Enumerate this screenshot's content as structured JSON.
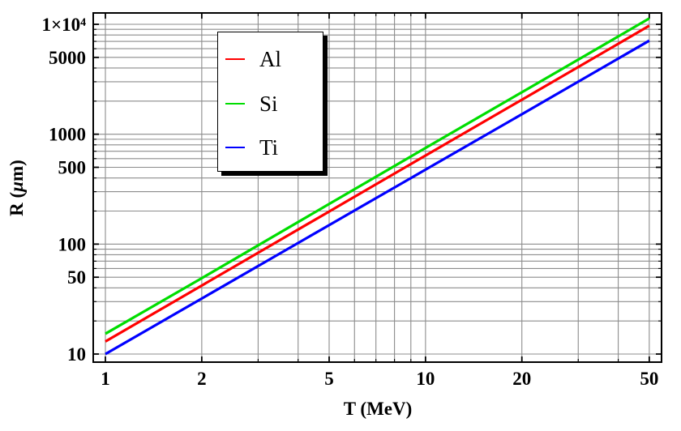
{
  "chart_data": {
    "type": "line",
    "title": "",
    "x_axis": {
      "label": "T (MeV)",
      "scale": "log",
      "range": [
        1,
        50
      ],
      "major_ticks": [
        1,
        2,
        5,
        10,
        20,
        50
      ],
      "major_tick_labels": [
        "1",
        "2",
        "5",
        "10",
        "20",
        "50"
      ]
    },
    "y_axis": {
      "label": "R (μm)",
      "scale": "log",
      "range": [
        10,
        10000
      ],
      "major_ticks": [
        10,
        50,
        100,
        500,
        1000,
        5000,
        10000
      ],
      "major_tick_labels": [
        "10",
        "50",
        "100",
        "500",
        "1000",
        "5000",
        "1×10⁴"
      ]
    },
    "grid": {
      "visible": true,
      "color": "#8c8c8c",
      "x_lines": [
        1,
        2,
        3,
        4,
        5,
        6,
        7,
        8,
        9,
        10,
        20,
        30,
        40,
        50
      ],
      "y_lines": [
        10,
        20,
        30,
        40,
        50,
        60,
        70,
        80,
        90,
        100,
        200,
        300,
        400,
        500,
        600,
        700,
        800,
        900,
        1000,
        2000,
        3000,
        4000,
        5000,
        6000,
        7000,
        8000,
        9000,
        10000
      ]
    },
    "x_sample": [
      1,
      2,
      5,
      10,
      20,
      50
    ],
    "series": [
      {
        "name": "Al",
        "color": "#ff0000",
        "values": [
          13,
          42,
          198,
          640,
          2060,
          9700
        ]
      },
      {
        "name": "Si",
        "color": "#00dd00",
        "values": [
          15.3,
          49,
          232,
          750,
          2410,
          11300
        ]
      },
      {
        "name": "Ti",
        "color": "#0000ff",
        "values": [
          10,
          32,
          149,
          476,
          1520,
          7100
        ]
      }
    ],
    "legend_position": "upper-left-inside",
    "frame": true,
    "frame_color": "#000000"
  }
}
